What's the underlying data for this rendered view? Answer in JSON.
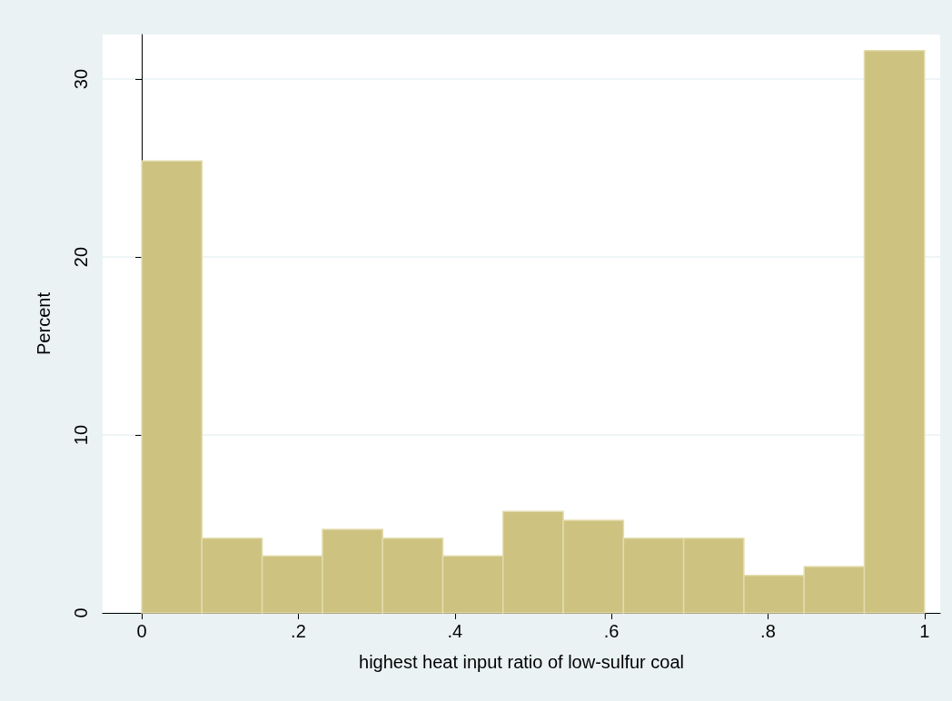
{
  "chart_data": {
    "type": "histogram",
    "xlabel": "highest heat input ratio of low-sulfur coal",
    "ylabel": "Percent",
    "bins": [
      0,
      0.0769,
      0.1538,
      0.2308,
      0.3077,
      0.3846,
      0.4615,
      0.5385,
      0.6154,
      0.6923,
      0.7692,
      0.8462,
      0.9231,
      1
    ],
    "values": [
      25.4,
      4.2,
      3.2,
      4.7,
      4.2,
      3.2,
      5.7,
      5.2,
      4.2,
      4.2,
      2.1,
      2.6,
      31.6
    ],
    "color": "#cdc27f",
    "xlim": [
      -0.05,
      1.02
    ],
    "xticks": [
      0,
      {
        "value": 0.2,
        "label": ".2"
      },
      {
        "value": 0.4,
        "label": ".4"
      },
      {
        "value": 0.6,
        "label": ".6"
      },
      {
        "value": 0.8,
        "label": ".8"
      },
      1
    ],
    "ylim": [
      0,
      32.5
    ],
    "yticks": [
      0,
      10,
      20,
      30
    ],
    "grid": "y"
  }
}
